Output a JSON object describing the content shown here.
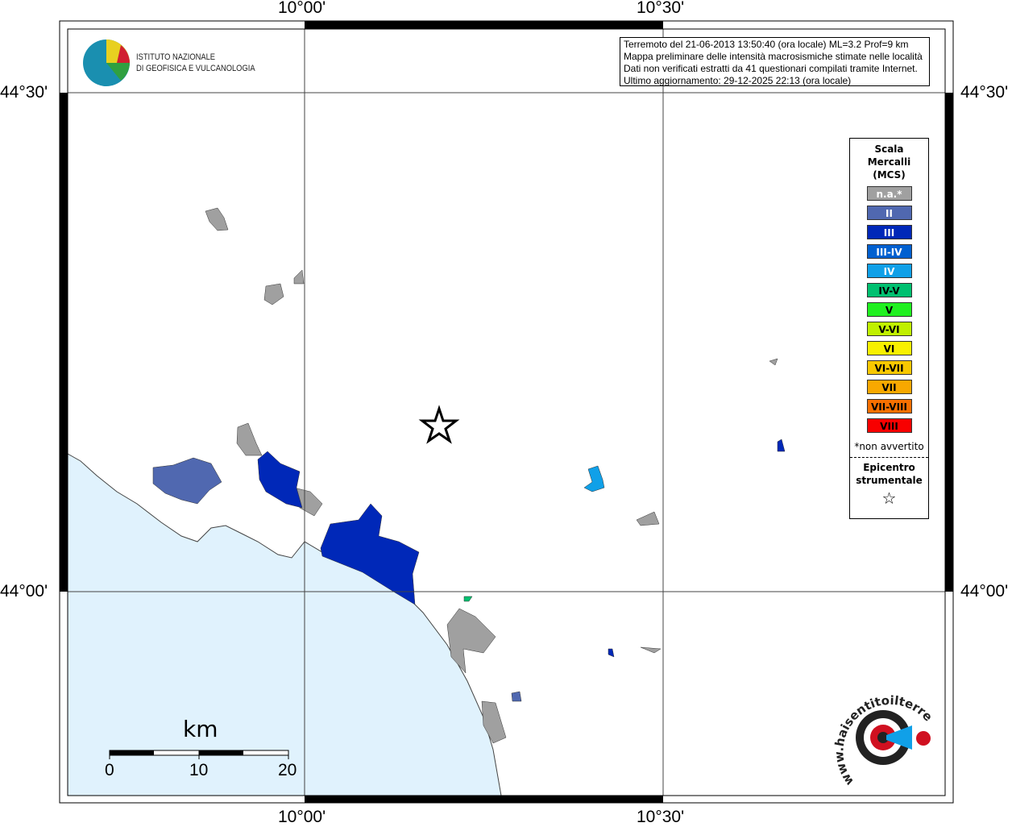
{
  "map": {
    "lon_ticks": [
      "10°00'",
      "10°30'"
    ],
    "lat_ticks": [
      "44°30'",
      "44°00'"
    ],
    "sea_color": "#e0f2fd"
  },
  "header": {
    "org_line1": "ISTITUTO NAZIONALE",
    "org_line2": "DI GEOFISICA E VULCANOLOGIA"
  },
  "info": {
    "line1": "Terremoto del 21-06-2013 13:50:40 (ora locale) ML=3.2 Prof=9 km",
    "line2": "Mappa preliminare delle intensità macrosismiche stimate nelle località",
    "line3": "Dati non verificati estratti da 41 questionari compilati tramite Internet.",
    "line4": "Ultimo aggiornamento: 29-12-2025 22:13 (ora locale)"
  },
  "legend": {
    "title1": "Scala",
    "title2": "Mercalli",
    "title3": "(MCS)",
    "items": [
      {
        "label": "n.a.*",
        "color": "#a0a0a0",
        "text": "#fff"
      },
      {
        "label": "II",
        "color": "#5068b0",
        "text": "#fff"
      },
      {
        "label": "III",
        "color": "#0028b8",
        "text": "#fff"
      },
      {
        "label": "III-IV",
        "color": "#0060d0",
        "text": "#fff"
      },
      {
        "label": "IV",
        "color": "#10a0e8",
        "text": "#fff"
      },
      {
        "label": "IV-V",
        "color": "#00c070",
        "text": "#000"
      },
      {
        "label": "V",
        "color": "#20f020",
        "text": "#000"
      },
      {
        "label": "V-VI",
        "color": "#c0f000",
        "text": "#000"
      },
      {
        "label": "VI",
        "color": "#f8f000",
        "text": "#000"
      },
      {
        "label": "VI-VII",
        "color": "#f8c800",
        "text": "#000"
      },
      {
        "label": "VII",
        "color": "#f8a800",
        "text": "#000"
      },
      {
        "label": "VII-VIII",
        "color": "#f87000",
        "text": "#000"
      },
      {
        "label": "VIII",
        "color": "#f80000",
        "text": "#000"
      }
    ],
    "note": "*non avvertito",
    "epi1": "Epicentro",
    "epi2": "strumentale"
  },
  "scale": {
    "unit": "km",
    "labels": [
      "0",
      "10",
      "20"
    ]
  },
  "badge": {
    "text": "www.haisentitoilterremoto.it"
  }
}
